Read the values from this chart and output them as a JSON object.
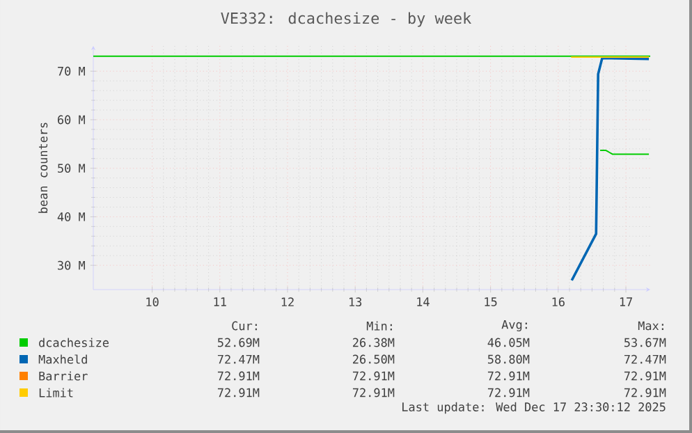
{
  "chart_data": {
    "type": "line",
    "title": "VE332: dcachesize - by week",
    "ylabel": "bean counters",
    "xlim": [
      9.13,
      17.36
    ],
    "xticks": [
      10,
      11,
      12,
      13,
      14,
      15,
      16,
      17
    ],
    "ylim": [
      25,
      75.2
    ],
    "yticks": [
      {
        "value": 30,
        "label": "30 M"
      },
      {
        "value": 40,
        "label": "40 M"
      },
      {
        "value": 50,
        "label": "50 M"
      },
      {
        "value": 60,
        "label": "60 M"
      },
      {
        "value": 70,
        "label": "70 M"
      }
    ],
    "grid": true,
    "legend": "bottom",
    "ref_lines": [
      {
        "axis": "y",
        "value": 73.1,
        "color": "#00cc00"
      }
    ],
    "series": [
      {
        "name": "dcachesize",
        "color": "#00cc00",
        "x": [
          16.62,
          16.7,
          16.74,
          16.8,
          17.34
        ],
        "values": [
          53.7,
          53.7,
          53.4,
          52.9,
          52.9
        ]
      },
      {
        "name": "Maxheld",
        "color": "#0066b3",
        "x": [
          16.2,
          16.56,
          16.59,
          16.65,
          17.34
        ],
        "values": [
          26.9,
          36.5,
          69.4,
          72.7,
          72.5
        ]
      },
      {
        "name": "Barrier",
        "color": "#ff8000"
      },
      {
        "name": "Limit",
        "color": "#ffcc00",
        "x": [
          16.19,
          17.34
        ],
        "values": [
          72.9,
          72.9
        ]
      }
    ],
    "annotations": [
      "Cur:",
      "Min:",
      "Avg:",
      "Max:",
      "52.69M",
      "26.38M",
      "46.05M",
      "53.67M",
      "72.47M",
      "26.50M",
      "58.80M",
      "72.47M",
      "72.91M",
      "72.91M",
      "72.91M",
      "72.91M",
      "72.91M",
      "72.91M",
      "72.91M",
      "72.91M",
      "Last update: Wed Dec 17 23:30:12 2025"
    ]
  }
}
